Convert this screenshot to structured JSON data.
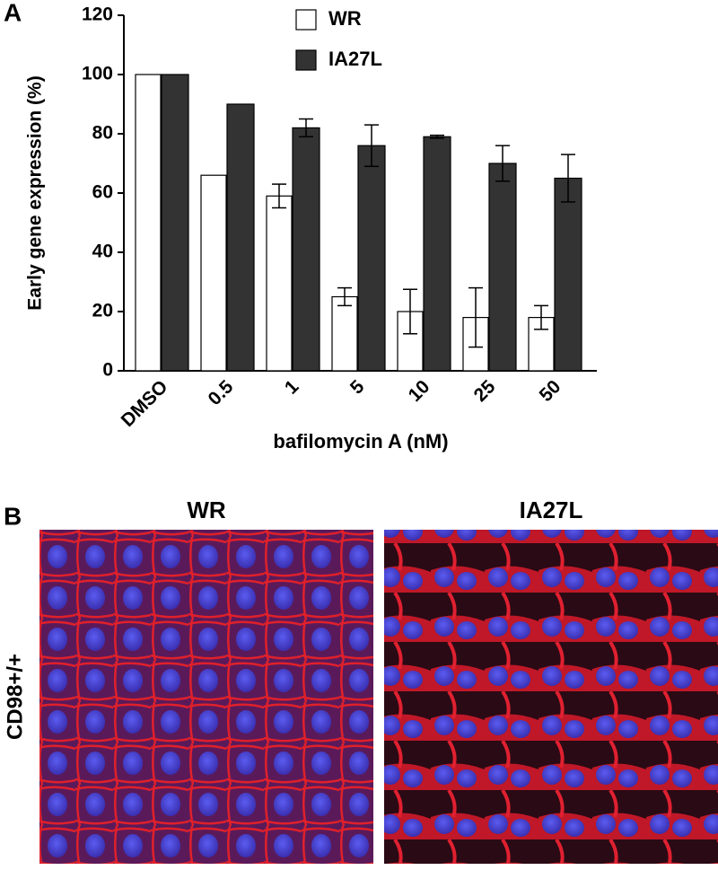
{
  "panel_labels": [
    "A",
    "B"
  ],
  "chart_data": {
    "type": "bar",
    "y_label": "Early gene expression (%)",
    "x_label": "bafilomycin A (nM)",
    "categories": [
      "DMSO",
      "0.5",
      "1",
      "5",
      "10",
      "25",
      "50"
    ],
    "series": [
      {
        "name": "WR",
        "color": "#ffffff",
        "values": [
          100,
          66,
          59,
          25,
          20,
          18,
          18
        ],
        "errors": [
          0,
          0,
          4,
          3,
          7.5,
          10,
          4
        ]
      },
      {
        "name": "IA27L",
        "color": "#333333",
        "values": [
          100,
          90,
          82,
          76,
          79,
          70,
          65
        ],
        "errors": [
          0,
          0,
          3,
          7,
          0.5,
          6,
          8
        ]
      }
    ],
    "ylim": [
      0,
      120
    ],
    "yticks": [
      0,
      20,
      40,
      60,
      80,
      100,
      120
    ],
    "legend": "top"
  },
  "images": {
    "titles": [
      "WR",
      "IA27L"
    ],
    "row_label": "CD98+/+"
  }
}
